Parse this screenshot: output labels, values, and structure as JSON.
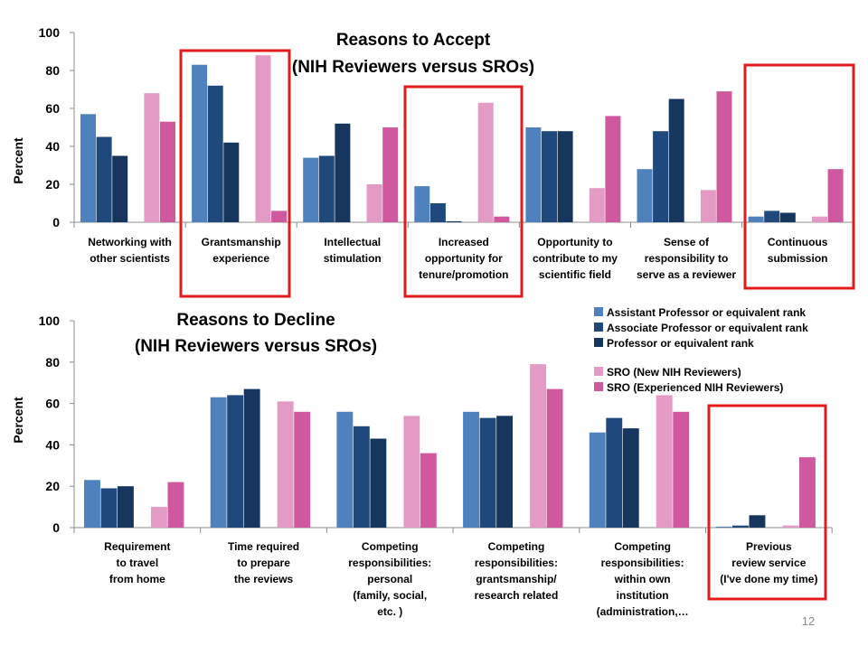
{
  "slide": {
    "page_number": "12"
  },
  "colors": {
    "assistant": "#4f81bd",
    "associate": "#1f497d",
    "professor": "#17365d",
    "sro_new": "#e39bc6",
    "sro_experienced": "#d0589f",
    "highlight": "#e31b1b"
  },
  "legend": {
    "items": [
      "Assistant Professor or equivalent rank",
      "Associate Professor or equivalent rank",
      "Professor or equivalent rank",
      "SRO (New NIH Reviewers)",
      "SRO (Experienced NIH Reviewers)"
    ]
  },
  "chart_data": [
    {
      "type": "bar",
      "title": [
        "Reasons to Accept",
        "(NIH Reviewers versus SROs)"
      ],
      "ylabel": "Percent",
      "ylim": [
        0,
        100
      ],
      "yticks": [
        "0",
        "20",
        "40",
        "60",
        "80",
        "100"
      ],
      "grid": false,
      "categories": [
        [
          "Networking with",
          "other scientists"
        ],
        [
          "Grantsmanship",
          "experience"
        ],
        [
          "Intellectual",
          "stimulation"
        ],
        [
          "Increased",
          "opportunity for",
          "tenure/promotion"
        ],
        [
          "Opportunity to",
          "contribute to my",
          "scientific field"
        ],
        [
          "Sense of",
          "responsibility to",
          "serve as a reviewer"
        ],
        [
          "Continuous",
          "submission"
        ]
      ],
      "series": [
        {
          "name": "Assistant Professor or equivalent rank",
          "values": [
            57,
            83,
            34,
            19,
            50,
            28,
            3
          ]
        },
        {
          "name": "Associate Professor or equivalent rank",
          "values": [
            45,
            72,
            35,
            10,
            48,
            48,
            6
          ]
        },
        {
          "name": "Professor or equivalent rank",
          "values": [
            35,
            42,
            52,
            0.5,
            48,
            65,
            5
          ]
        },
        {
          "name": "SRO (New NIH Reviewers)",
          "values": [
            68,
            88,
            20,
            63,
            18,
            17,
            3
          ]
        },
        {
          "name": "SRO (Experienced NIH Reviewers)",
          "values": [
            53,
            6,
            50,
            3,
            56,
            69,
            28
          ]
        }
      ],
      "highlighted_categories": [
        1,
        3,
        6
      ]
    },
    {
      "type": "bar",
      "title": [
        "Reasons to Decline",
        "(NIH Reviewers versus SROs)"
      ],
      "ylabel": "Percent",
      "ylim": [
        0,
        100
      ],
      "yticks": [
        "0",
        "20",
        "40",
        "60",
        "80",
        "100"
      ],
      "grid": false,
      "categories": [
        [
          "Requirement",
          "to travel",
          "from home"
        ],
        [
          "Time required",
          "to prepare",
          "the reviews"
        ],
        [
          "Competing",
          "responsibilities:",
          "personal",
          "(family, social,",
          "etc. )"
        ],
        [
          "Competing",
          "responsibilities:",
          "grantsmanship/",
          "research related"
        ],
        [
          "Competing",
          "responsibilities:",
          "within own",
          "institution",
          "(administration,…"
        ],
        [
          "Previous",
          "review service",
          "(I've done my time)"
        ]
      ],
      "series": [
        {
          "name": "Assistant Professor or equivalent rank",
          "values": [
            23,
            63,
            56,
            56,
            46,
            0.5
          ]
        },
        {
          "name": "Associate Professor or equivalent rank",
          "values": [
            19,
            64,
            49,
            53,
            53,
            1
          ]
        },
        {
          "name": "Professor or equivalent rank",
          "values": [
            20,
            67,
            43,
            54,
            48,
            6
          ]
        },
        {
          "name": "SRO (New NIH Reviewers)",
          "values": [
            10,
            61,
            54,
            79,
            64,
            1
          ]
        },
        {
          "name": "SRO (Experienced NIH Reviewers)",
          "values": [
            22,
            56,
            36,
            67,
            56,
            34
          ]
        }
      ],
      "highlighted_categories": [
        5
      ]
    }
  ]
}
